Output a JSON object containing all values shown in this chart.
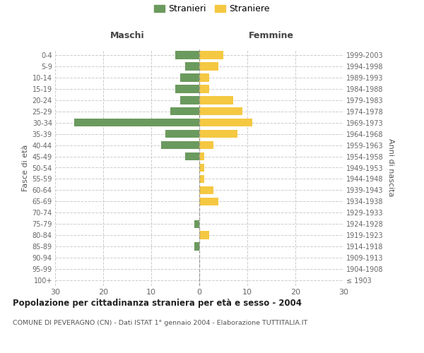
{
  "age_groups": [
    "100+",
    "95-99",
    "90-94",
    "85-89",
    "80-84",
    "75-79",
    "70-74",
    "65-69",
    "60-64",
    "55-59",
    "50-54",
    "45-49",
    "40-44",
    "35-39",
    "30-34",
    "25-29",
    "20-24",
    "15-19",
    "10-14",
    "5-9",
    "0-4"
  ],
  "birth_years": [
    "≤ 1903",
    "1904-1908",
    "1909-1913",
    "1914-1918",
    "1919-1923",
    "1924-1928",
    "1929-1933",
    "1934-1938",
    "1939-1943",
    "1944-1948",
    "1949-1953",
    "1954-1958",
    "1959-1963",
    "1964-1968",
    "1969-1973",
    "1974-1978",
    "1979-1983",
    "1984-1988",
    "1989-1993",
    "1994-1998",
    "1999-2003"
  ],
  "maschi": [
    0,
    0,
    0,
    1,
    0,
    1,
    0,
    0,
    0,
    0,
    0,
    3,
    8,
    7,
    26,
    6,
    4,
    5,
    4,
    3,
    5
  ],
  "femmine": [
    0,
    0,
    0,
    0,
    2,
    0,
    0,
    4,
    3,
    1,
    1,
    1,
    3,
    8,
    11,
    9,
    7,
    2,
    2,
    4,
    5
  ],
  "color_maschi": "#6b9a5e",
  "color_femmine": "#f5c842",
  "title": "Popolazione per cittadinanza straniera per età e sesso - 2004",
  "subtitle": "COMUNE DI PEVERAGNO (CN) - Dati ISTAT 1° gennaio 2004 - Elaborazione TUTTITALIA.IT",
  "ylabel_left": "Fasce di età",
  "ylabel_right": "Anni di nascita",
  "label_maschi": "Maschi",
  "label_femmine": "Femmine",
  "legend_maschi": "Stranieri",
  "legend_femmine": "Straniere",
  "xlim": 30,
  "background_color": "#ffffff",
  "grid_color": "#cccccc"
}
